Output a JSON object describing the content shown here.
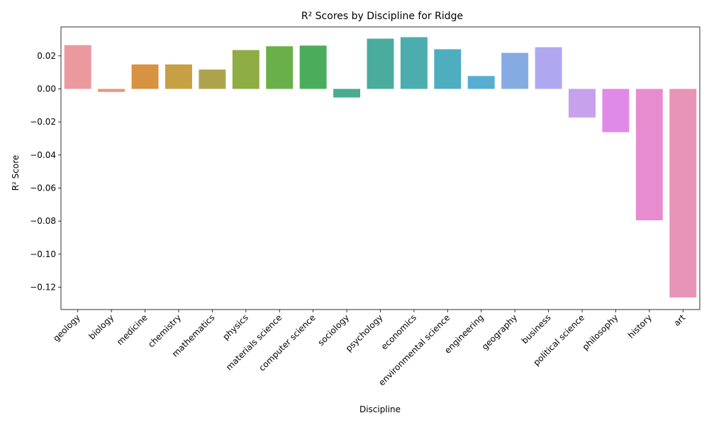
{
  "chart_data": {
    "type": "bar",
    "title": "R² Scores by Discipline for Ridge",
    "xlabel": "Discipline",
    "ylabel": "R² Score",
    "ylim": [
      -0.1335,
      0.0375
    ],
    "yticks": [
      0.02,
      0.0,
      -0.02,
      -0.04,
      -0.06,
      -0.08,
      -0.1,
      -0.12
    ],
    "ytick_labels": [
      "0.02",
      "0.00",
      "−0.02",
      "−0.04",
      "−0.06",
      "−0.08",
      "−0.10",
      "−0.12"
    ],
    "grid": false,
    "legend": "none",
    "categories": [
      "geology",
      "biology",
      "medicine",
      "chemistry",
      "mathematics",
      "physics",
      "materials science",
      "computer science",
      "sociology",
      "psychology",
      "economics",
      "environmental science",
      "engineering",
      "geography",
      "business",
      "political science",
      "philosophy",
      "history",
      "art"
    ],
    "values": [
      0.0265,
      -0.0018,
      0.0148,
      0.0148,
      0.0117,
      0.0235,
      0.0258,
      0.0262,
      -0.0052,
      0.0304,
      0.0313,
      0.024,
      0.0078,
      0.0218,
      0.0252,
      -0.0173,
      -0.0262,
      -0.0795,
      -0.1262
    ],
    "colors": [
      "#ea9a9f",
      "#e5977d",
      "#d79242",
      "#c7a046",
      "#aea34d",
      "#8ead44",
      "#6ab04a",
      "#4aad5c",
      "#49ac90",
      "#4aac9d",
      "#4cadae",
      "#4fadc0",
      "#57aed2",
      "#85abe2",
      "#afa8f0",
      "#c7a1eb",
      "#e08ae8",
      "#e78dcf",
      "#e894b8"
    ]
  }
}
